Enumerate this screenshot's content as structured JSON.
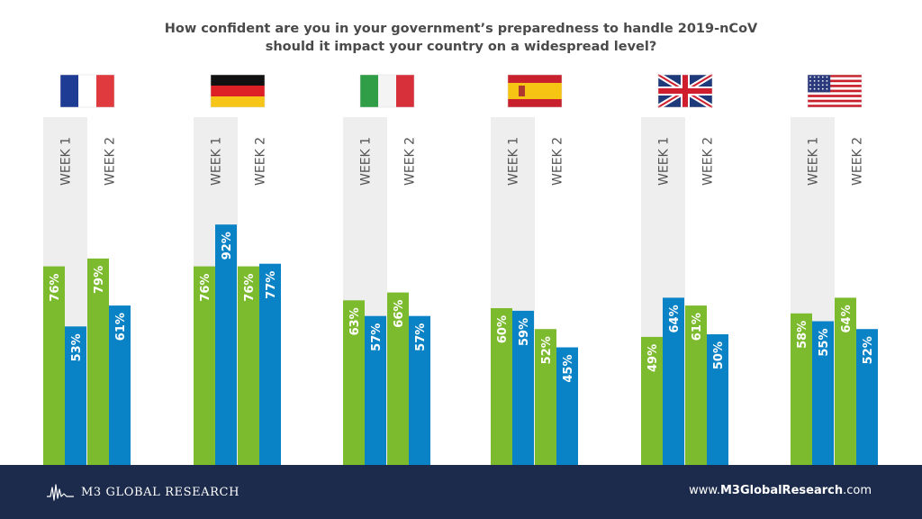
{
  "header": {
    "title_line1": "How confident are you in your government’s preparedness to handle 2019-nCoV",
    "title_line2": "should it impact your country on a widespread level?"
  },
  "colors": {
    "green": "#7cba2e",
    "blue": "#0a82c6",
    "column_bg": "#eeeeef",
    "footer_bg": "#1c2b4b"
  },
  "chart_data": {
    "type": "bar",
    "value_format": "percent",
    "ylim": [
      0,
      100
    ],
    "week_labels": [
      "WEEK 1",
      "WEEK 2"
    ],
    "countries": [
      {
        "flag": "france-flag-icon",
        "week1": [
          76,
          53
        ],
        "week2": [
          79,
          61
        ]
      },
      {
        "flag": "germany-flag-icon",
        "week1": [
          76,
          92
        ],
        "week2": [
          76,
          77
        ]
      },
      {
        "flag": "italy-flag-icon",
        "week1": [
          63,
          57
        ],
        "week2": [
          66,
          57
        ]
      },
      {
        "flag": "spain-flag-icon",
        "week1": [
          60,
          59
        ],
        "week2": [
          52,
          45
        ]
      },
      {
        "flag": "uk-flag-icon",
        "week1": [
          49,
          64
        ],
        "week2": [
          61,
          50
        ]
      },
      {
        "flag": "usa-flag-icon",
        "week1": [
          58,
          55
        ],
        "week2": [
          64,
          52
        ]
      }
    ]
  },
  "footer": {
    "brand": "M3 GLOBAL RESEARCH",
    "website_prefix": "www.",
    "website_bold": "M3GlobalResearch",
    "website_suffix": ".com"
  }
}
